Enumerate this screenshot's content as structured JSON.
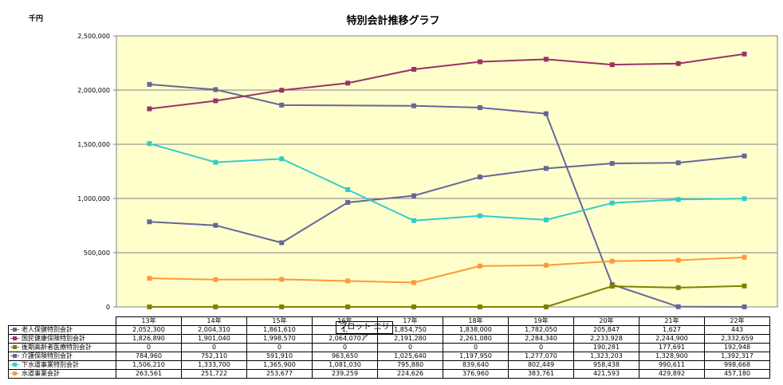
{
  "chart_data": {
    "type": "line",
    "title": "特別会計推移グラフ",
    "unit_label": "千円",
    "ylim": [
      0,
      2500000
    ],
    "yticks": [
      "0",
      "500,000",
      "1,000,000",
      "1,500,000",
      "2,000,000",
      "2,500,000"
    ],
    "ytick_values": [
      0,
      500000,
      1000000,
      1500000,
      2000000,
      2500000
    ],
    "grid": true,
    "plot_background": "#FFFFCC",
    "categories": [
      "13年",
      "14年",
      "15年",
      "16年",
      "17年",
      "18年",
      "19年",
      "20年",
      "21年",
      "22年"
    ],
    "series": [
      {
        "name": "老人保健特別会計",
        "color": "#666699",
        "values": [
          2052300,
          2004310,
          1861610,
          null,
          1854750,
          1838000,
          1782050,
          205847,
          1627,
          443
        ],
        "labels": [
          "2,052,300",
          "2,004,310",
          "1,861,610",
          "1,",
          "1,854,750",
          "1,838,000",
          "1,782,050",
          "205,847",
          "1,627",
          "443"
        ]
      },
      {
        "name": "国民健康保険特別会計",
        "color": "#993366",
        "values": [
          1826890,
          1901040,
          1998570,
          2064070,
          2191280,
          2261080,
          2284340,
          2233928,
          2244900,
          2332659
        ],
        "labels": [
          "1,826,890",
          "1,901,040",
          "1,998,570",
          "2,064,070",
          "2,191,280",
          "2,261,080",
          "2,284,340",
          "2,233,928",
          "2,244,900",
          "2,332,659"
        ]
      },
      {
        "name": "後期高齢者医療特別会計",
        "color": "#808000",
        "values": [
          0,
          0,
          0,
          0,
          0,
          0,
          0,
          190281,
          177691,
          192948
        ],
        "labels": [
          "0",
          "0",
          "0",
          "0",
          "0",
          "0",
          "0",
          "190,281",
          "177,691",
          "192,948"
        ]
      },
      {
        "name": "介護保険特別会計",
        "color": "#666699",
        "values": [
          784960,
          752110,
          591910,
          963650,
          1025640,
          1197950,
          1277070,
          1323203,
          1328900,
          1392317
        ],
        "labels": [
          "784,960",
          "752,110",
          "591,910",
          "963,650",
          "1,025,640",
          "1,197,950",
          "1,277,070",
          "1,323,203",
          "1,328,900",
          "1,392,317"
        ]
      },
      {
        "name": "下水道事業特別会計",
        "color": "#33CCCC",
        "values": [
          1506210,
          1333700,
          1365900,
          1081030,
          795880,
          839640,
          802449,
          958438,
          990611,
          998668
        ],
        "labels": [
          "1,506,210",
          "1,333,700",
          "1,365,900",
          "1,081,030",
          "795,880",
          "839,640",
          "802,449",
          "958,438",
          "990,611",
          "998,668"
        ]
      },
      {
        "name": "水道事業会計",
        "color": "#FF9933",
        "values": [
          263561,
          251722,
          253677,
          239259,
          224626,
          376960,
          383761,
          421593,
          429892,
          457180
        ],
        "labels": [
          "263,561",
          "251,722",
          "253,677",
          "239,259",
          "224,626",
          "376,960",
          "383,761",
          "421,593",
          "429,892",
          "457,180"
        ]
      }
    ]
  },
  "tooltip": {
    "text": "プロット エリア"
  }
}
